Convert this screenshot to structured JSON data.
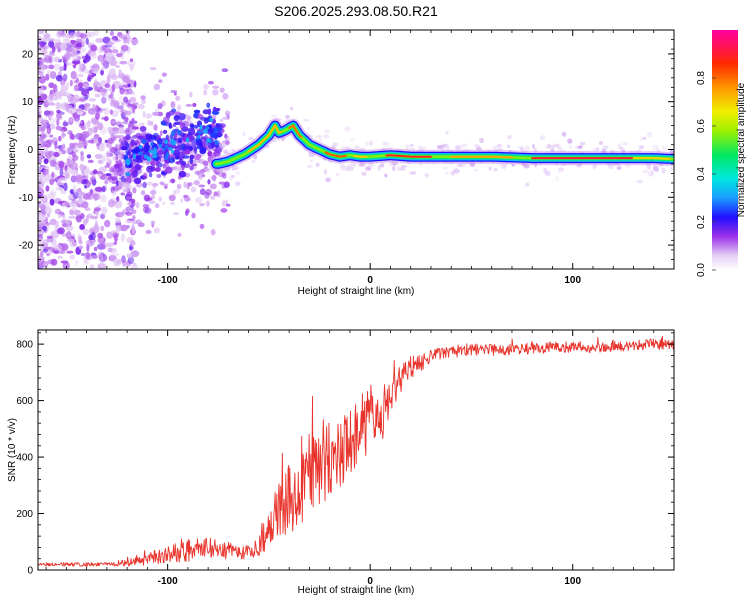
{
  "figure_title": "S206.2025.293.08.50.R21",
  "colorbar": {
    "label": "Normalized spectral amplitude",
    "ticks": [
      "0.0",
      "0.2",
      "0.4",
      "0.6",
      "0.8"
    ],
    "tick_values": [
      0.0,
      0.2,
      0.4,
      0.6,
      0.8
    ],
    "range": [
      0,
      1
    ]
  },
  "chart_data": [
    {
      "type": "heatmap",
      "title": "S206.2025.293.08.50.R21",
      "xlabel": "Height of straight line (km)",
      "ylabel": "Frequency (Hz)",
      "xlim": [
        -164,
        150
      ],
      "ylim": [
        -25,
        25
      ],
      "xticks": [
        -100,
        0,
        100
      ],
      "xtick_labels": [
        "-100",
        "0",
        "100"
      ],
      "yticks": [
        -20,
        -10,
        0,
        10,
        20
      ],
      "ytick_labels": [
        "-20",
        "-10",
        "0",
        "10",
        "20"
      ],
      "ridge": {
        "description": "frequency of peak spectral amplitude vs height",
        "x": [
          -75,
          -70,
          -62,
          -55,
          -50,
          -47,
          -45,
          -42,
          -38,
          -35,
          -30,
          -25,
          -20,
          -15,
          -10,
          -5,
          0,
          10,
          20,
          40,
          60,
          80,
          100,
          120,
          140,
          150
        ],
        "y": [
          -3,
          -2.5,
          -1,
          1,
          3,
          5,
          3.5,
          4,
          5,
          3,
          1,
          0,
          -1,
          -1.5,
          -1.2,
          -1.5,
          -1.5,
          -1.2,
          -1.5,
          -1.5,
          -1.5,
          -1.8,
          -1.8,
          -1.8,
          -1.8,
          -2
        ]
      }
    },
    {
      "type": "line",
      "xlabel": "Height of straight line (km)",
      "ylabel": "SNR (10 * v/v)",
      "xlim": [
        -164,
        150
      ],
      "ylim": [
        0,
        850
      ],
      "xticks": [
        -100,
        0,
        100
      ],
      "xtick_labels": [
        "-100",
        "0",
        "100"
      ],
      "yticks": [
        0,
        200,
        400,
        600,
        800
      ],
      "ytick_labels": [
        "0",
        "200",
        "400",
        "600",
        "800"
      ],
      "series": [
        {
          "name": "SNR",
          "color": "#e8342c",
          "x": [
            -164,
            -140,
            -125,
            -120,
            -110,
            -100,
            -90,
            -80,
            -70,
            -60,
            -55,
            -50,
            -45,
            -40,
            -35,
            -30,
            -25,
            -20,
            -15,
            -10,
            -5,
            0,
            5,
            10,
            15,
            20,
            25,
            30,
            40,
            50,
            60,
            80,
            100,
            120,
            140,
            150
          ],
          "y": [
            20,
            20,
            20,
            30,
            40,
            55,
            70,
            75,
            70,
            60,
            80,
            150,
            220,
            250,
            280,
            340,
            360,
            390,
            420,
            470,
            500,
            550,
            570,
            620,
            680,
            720,
            730,
            760,
            770,
            780,
            780,
            785,
            790,
            790,
            800,
            800
          ],
          "amp": [
            8,
            8,
            8,
            20,
            30,
            40,
            50,
            50,
            40,
            30,
            50,
            80,
            120,
            160,
            160,
            180,
            180,
            180,
            170,
            160,
            150,
            140,
            120,
            90,
            70,
            50,
            40,
            30,
            25,
            25,
            25,
            25,
            25,
            25,
            25,
            25
          ]
        }
      ]
    }
  ]
}
